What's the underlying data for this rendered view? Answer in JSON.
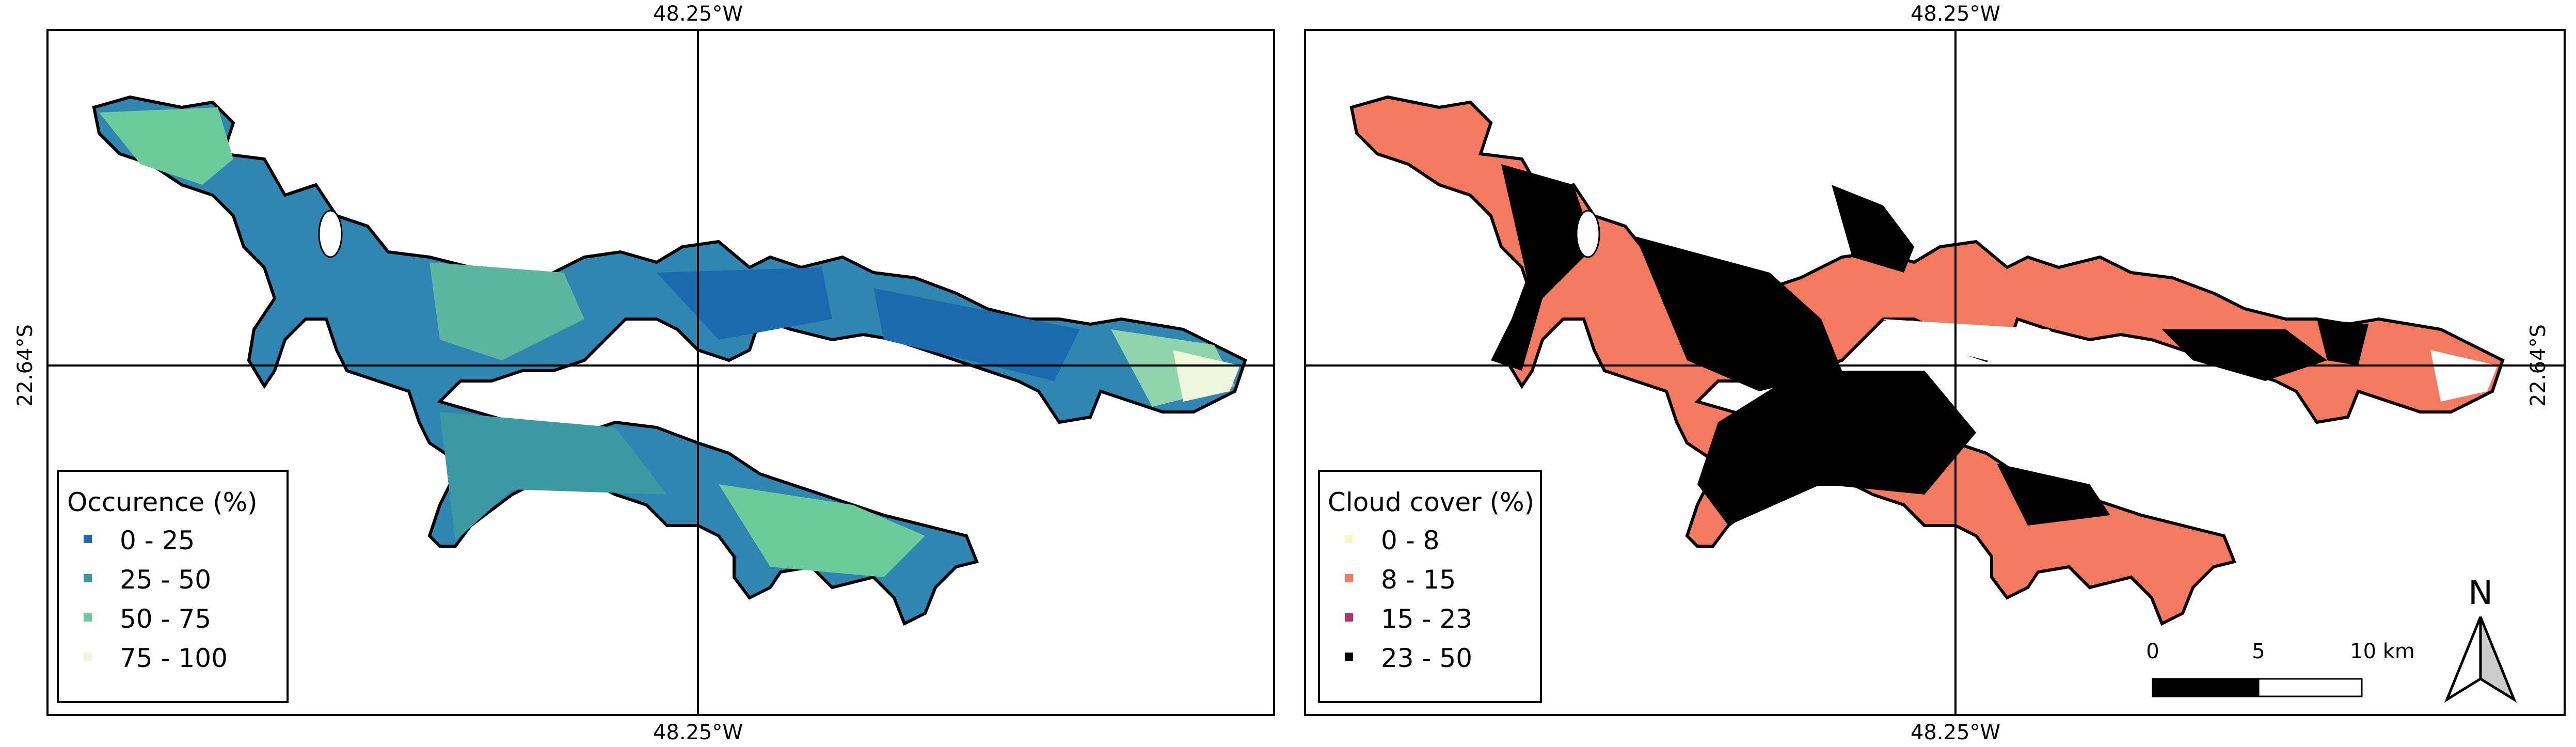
{
  "coords": {
    "lon_label": "48.25°W",
    "lat_label": "22.64°S"
  },
  "left_map": {
    "legend": {
      "title": "Occurence (%)",
      "items": [
        {
          "label": "0 - 25",
          "color": "#1a6aae"
        },
        {
          "label": "25 - 50",
          "color": "#3b9aa4"
        },
        {
          "label": "50 - 75",
          "color": "#6ccb9b"
        },
        {
          "label": "75 - 100",
          "color": "#eef7dc"
        }
      ]
    }
  },
  "right_map": {
    "legend": {
      "title": "Cloud cover (%)",
      "items": [
        {
          "label": "0 - 8",
          "color": "#fbf7c2"
        },
        {
          "label": "8 - 15",
          "color": "#f37a5f"
        },
        {
          "label": "15 - 23",
          "color": "#b1336e"
        },
        {
          "label": "23 - 50",
          "color": "#000000"
        }
      ]
    },
    "scale_bar": {
      "labels": [
        "0",
        "5",
        "10 km"
      ]
    },
    "north_arrow": {
      "label": "N"
    }
  }
}
